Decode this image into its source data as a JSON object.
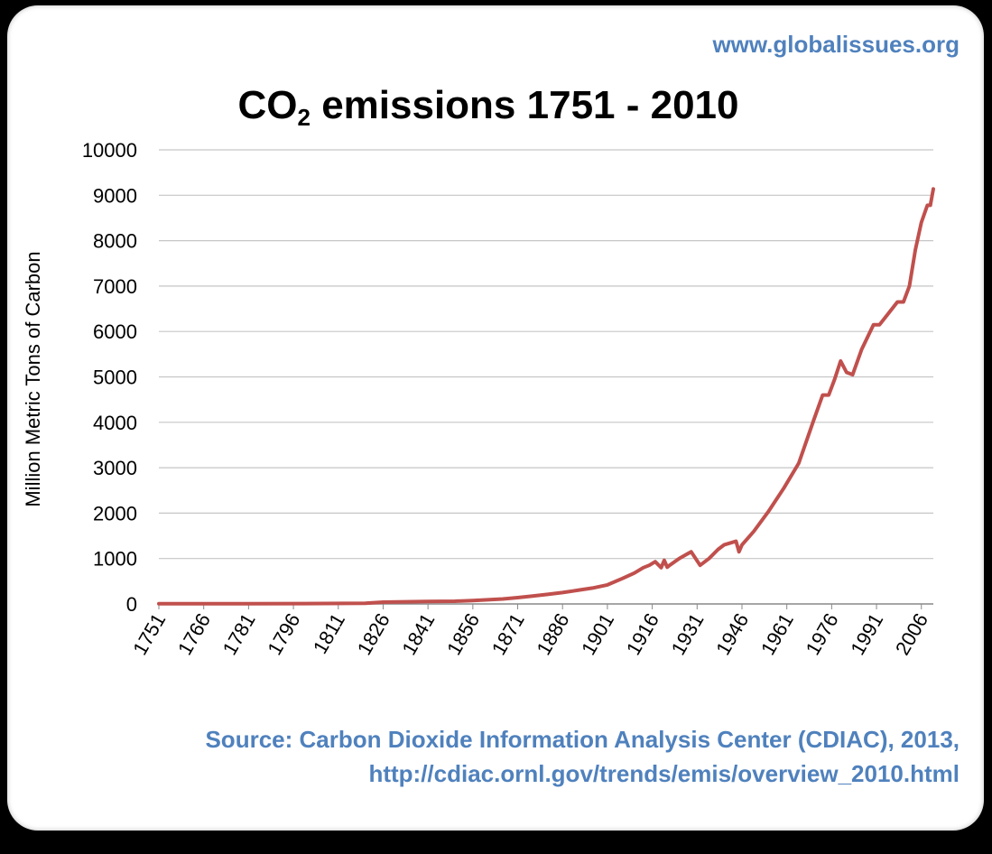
{
  "site_url": "www.globalissues.org",
  "chart_data": {
    "type": "line",
    "title": {
      "prefix": "CO",
      "subscript": "2",
      "suffix": " emissions 1751 - 2010"
    },
    "ylabel": "Million Metric Tons of Carbon",
    "xlabel": "",
    "ylim": [
      0,
      10000
    ],
    "yticks": [
      0,
      1000,
      2000,
      3000,
      4000,
      5000,
      6000,
      7000,
      8000,
      9000,
      10000
    ],
    "xlim": [
      1751,
      2010
    ],
    "xticks": [
      1751,
      1766,
      1781,
      1796,
      1811,
      1826,
      1841,
      1856,
      1871,
      1886,
      1901,
      1916,
      1931,
      1946,
      1961,
      1976,
      1991,
      2006
    ],
    "grid": true,
    "line_color": "#c0504d",
    "series": [
      {
        "x": [
          1751,
          1780,
          1800,
          1820,
          1826,
          1841,
          1850,
          1856,
          1866,
          1871,
          1876,
          1881,
          1886,
          1891,
          1896,
          1901,
          1906,
          1910,
          1913,
          1915,
          1917,
          1919,
          1920,
          1921,
          1922,
          1925,
          1929,
          1932,
          1935,
          1938,
          1940,
          1944,
          1945,
          1946,
          1948,
          1950,
          1955,
          1960,
          1965,
          1970,
          1973,
          1975,
          1977,
          1979,
          1981,
          1983,
          1986,
          1990,
          1992,
          1995,
          1998,
          2000,
          2002,
          2004,
          2006,
          2008,
          2009,
          2010
        ],
        "values": [
          3,
          5,
          8,
          14,
          40,
          55,
          60,
          75,
          110,
          140,
          175,
          210,
          250,
          300,
          350,
          420,
          560,
          680,
          800,
          850,
          930,
          800,
          960,
          810,
          860,
          1000,
          1150,
          850,
          1000,
          1200,
          1300,
          1380,
          1150,
          1300,
          1450,
          1600,
          2050,
          2550,
          3100,
          4050,
          4600,
          4600,
          4950,
          5350,
          5100,
          5050,
          5600,
          6150,
          6150,
          6400,
          6650,
          6650,
          7000,
          7800,
          8400,
          8780,
          8780,
          9140
        ]
      }
    ]
  },
  "source": {
    "line1": "Source: Carbon  Dioxide Information  Analysis Center (CDIAC), 2013,",
    "line2": "http://cdiac.ornl.gov/trends/emis/overview_2010.html"
  }
}
